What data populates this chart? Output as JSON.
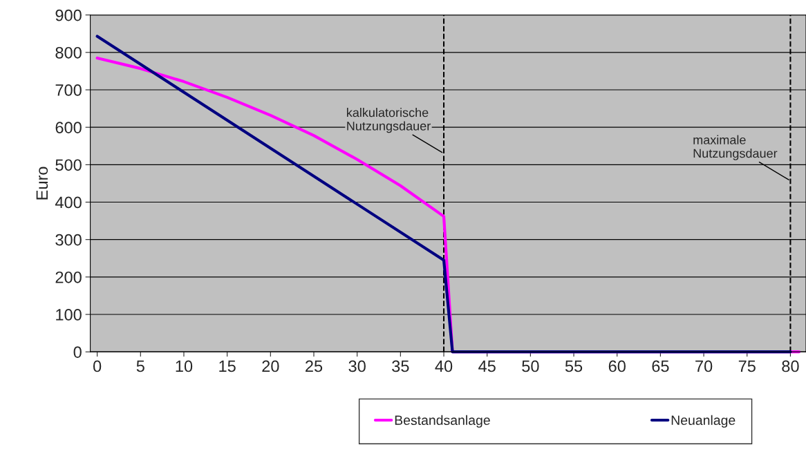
{
  "chart_data": {
    "type": "line",
    "ylabel": "Euro",
    "ylim": [
      0,
      900
    ],
    "yticks": [
      0,
      100,
      200,
      300,
      400,
      500,
      600,
      700,
      800,
      900
    ],
    "xlim": [
      -0.8,
      81.8
    ],
    "xticks": [
      0,
      5,
      10,
      15,
      20,
      25,
      30,
      35,
      40,
      45,
      50,
      55,
      60,
      65,
      70,
      75,
      80
    ],
    "series": [
      {
        "name": "Bestandsanlage",
        "color": "#ff00ff",
        "x": [
          0,
          5,
          10,
          15,
          20,
          25,
          30,
          35,
          40,
          41,
          81
        ],
        "values": [
          785,
          757,
          722,
          680,
          632,
          578,
          514,
          444,
          362,
          0,
          0
        ]
      },
      {
        "name": "Neuanlage",
        "color": "#000080",
        "x": [
          0,
          40,
          41,
          80
        ],
        "values": [
          843,
          245,
          0,
          0
        ]
      }
    ],
    "ref_lines": [
      {
        "axis": "x",
        "value": 40,
        "color": "#000000",
        "line_style": "dashed"
      },
      {
        "axis": "x",
        "value": 80,
        "color": "#000000",
        "line_style": "dashed"
      }
    ],
    "annotations": [
      {
        "text": "kalkulatorische\nNutzungsdauer",
        "x": 40,
        "y": 530
      },
      {
        "text": "maximale\nNutzungsdauer",
        "x": 80,
        "y": 457
      }
    ],
    "grid": "y",
    "legend": "bottom",
    "marker": "none",
    "line_style": "solid"
  }
}
